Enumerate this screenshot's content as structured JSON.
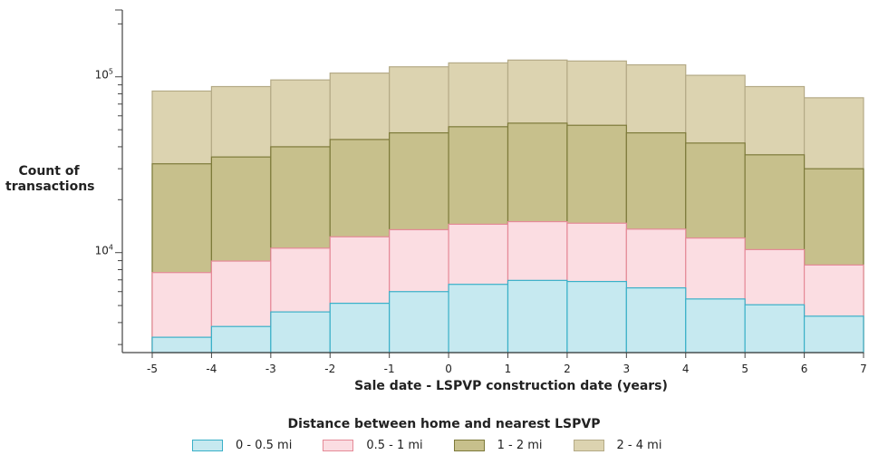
{
  "chart_data": {
    "type": "bar",
    "stacked": true,
    "y_scale": "log",
    "x_tick_labels": [
      "-5",
      "-4",
      "-3",
      "-2",
      "-1",
      "0",
      "1",
      "2",
      "3",
      "4",
      "5",
      "6",
      "7"
    ],
    "bin_edges": [
      -5,
      -4,
      -3,
      -2,
      -1,
      0,
      1,
      2,
      3,
      4,
      5,
      6,
      7
    ],
    "xlabel": "Sale date - LSPVP construction date (years)",
    "ylabel": "Count of transactions",
    "y_tick_labels": [
      {
        "value": 10000,
        "base": "10",
        "exp": "4"
      },
      {
        "value": 100000,
        "base": "10",
        "exp": "5"
      }
    ],
    "ylim": [
      2700,
      240000
    ],
    "series": [
      {
        "name": "0 - 0.5 mi",
        "color": "#c6e9f0",
        "edge": "#3ab0c8",
        "values": [
          3300,
          3800,
          4600,
          5150,
          6000,
          6600,
          6950,
          6850,
          6300,
          5450,
          5050,
          4350
        ]
      },
      {
        "name": "0.5 - 1 mi",
        "color": "#fbdde2",
        "edge": "#e58a98",
        "values": [
          7700,
          8950,
          10600,
          12300,
          13500,
          14500,
          15000,
          14700,
          13600,
          12100,
          10400,
          8500
        ]
      },
      {
        "name": "1 - 2 mi",
        "color": "#c7c08c",
        "edge": "#7d7a3a",
        "values": [
          32000,
          35000,
          40000,
          44000,
          48000,
          52000,
          54500,
          53000,
          48000,
          42000,
          36000,
          30000
        ]
      },
      {
        "name": "2 - 4 mi",
        "color": "#dcd3b0",
        "edge": "#b4aa86",
        "values": [
          83000,
          88000,
          96000,
          105000,
          114000,
          120000,
          124500,
          123000,
          117000,
          102000,
          88000,
          76000
        ]
      }
    ],
    "legend": {
      "title": "Distance between home and nearest LSPVP",
      "position": "bottom"
    },
    "grid": false
  }
}
